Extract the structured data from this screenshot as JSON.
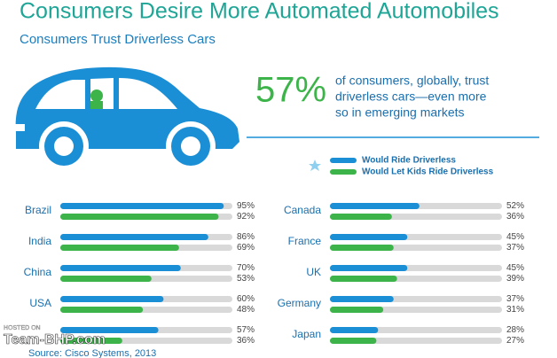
{
  "title": "Consumers Desire More Automated Automobiles",
  "subtitle": "Consumers Trust Driverless Cars",
  "headline": {
    "stat": "57%",
    "text": [
      "of consumers, globally, trust",
      "driverless cars—even more",
      "so in emerging markets"
    ]
  },
  "chart_data": {
    "type": "bar",
    "categories": [
      "Brazil",
      "India",
      "China",
      "USA",
      null,
      "Canada",
      "France",
      "UK",
      "Germany",
      "Japan"
    ],
    "xlim": [
      0,
      100
    ],
    "series": [
      {
        "name": "Would Ride Driverless",
        "color": "#1a8fd6",
        "values": [
          95,
          86,
          70,
          60,
          57,
          52,
          45,
          45,
          37,
          28
        ],
        "value_labels": [
          "95%",
          "86%",
          "70%",
          "60%",
          "57%",
          "52%",
          "45%",
          "45%",
          "37%",
          "28%"
        ]
      },
      {
        "name": "Would Let Kids Ride Driverless",
        "color": "#3cb44a",
        "values": [
          92,
          69,
          53,
          48,
          36,
          36,
          37,
          39,
          31,
          27
        ],
        "value_labels": [
          "92%",
          "69%",
          "53%",
          "48%",
          "36%",
          "36%",
          "37%",
          "39%",
          "31%",
          "27%"
        ]
      }
    ]
  },
  "source": "Source: Cisco Systems, 2013",
  "watermark": {
    "top": "HOSTED ON",
    "brand": "Team-BHP.com"
  }
}
